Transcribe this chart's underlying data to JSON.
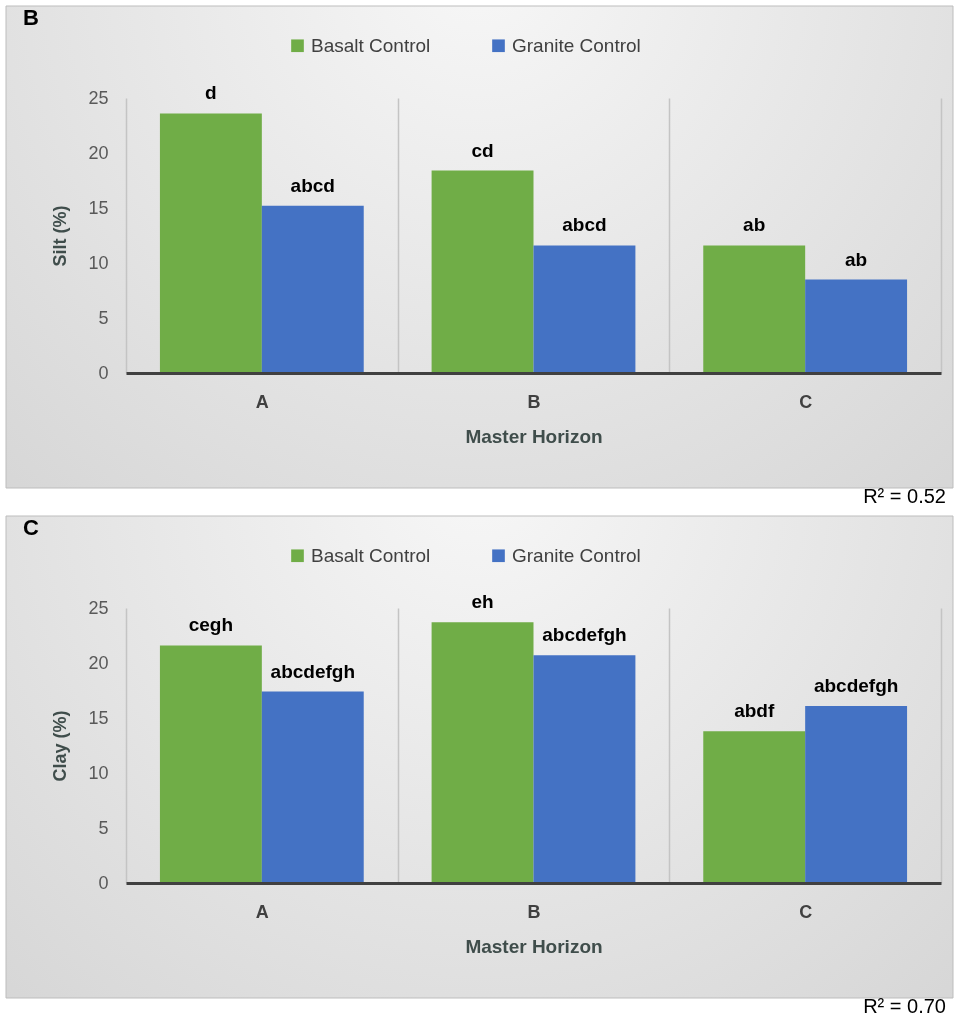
{
  "chart_data": [
    {
      "type": "bar",
      "title": "B",
      "categories": [
        "A",
        "B",
        "C"
      ],
      "xlabel": "Master Horizon",
      "ylabel": "Silt (%)",
      "series": [
        {
          "name": "Basalt Control",
          "color": "#70ad47",
          "values": [
            23.6,
            18.4,
            11.6
          ],
          "value_labels": [
            "d",
            "cd",
            "ab"
          ]
        },
        {
          "name": "Granite  Control",
          "color": "#4472c4",
          "values": [
            15.2,
            11.6,
            8.5
          ],
          "value_labels": [
            "abcd",
            "abcd",
            "ab"
          ]
        }
      ],
      "ylim": [
        0,
        25
      ],
      "yticks": [
        0,
        5,
        10,
        15,
        20,
        25
      ],
      "grid": "x",
      "legend": "top",
      "annotations": [
        "R² = 0.52"
      ]
    },
    {
      "type": "bar",
      "title": "C",
      "categories": [
        "A",
        "B",
        "C"
      ],
      "xlabel": "Master Horizon",
      "ylabel": "Clay (%)",
      "series": [
        {
          "name": "Basalt Control",
          "color": "#70ad47",
          "values": [
            21.6,
            23.7,
            13.8
          ],
          "value_labels": [
            "cegh",
            "eh",
            "abdf"
          ]
        },
        {
          "name": "Granite  Control",
          "color": "#4472c4",
          "values": [
            17.4,
            20.7,
            16.1
          ],
          "value_labels": [
            "abcdefgh",
            "abcdefgh",
            "abcdefgh"
          ]
        }
      ],
      "ylim": [
        0,
        25
      ],
      "yticks": [
        0,
        5,
        10,
        15,
        20,
        25
      ],
      "grid": "x",
      "legend": "top",
      "annotations": [
        "R² = 0.70"
      ]
    }
  ]
}
